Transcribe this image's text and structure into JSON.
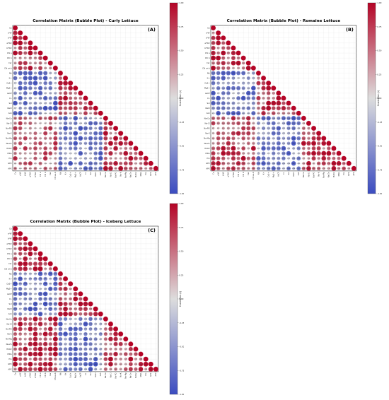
{
  "colors": {
    "negative": "#3b4cc0",
    "neutral": "#dddddd",
    "positive": "#b40426"
  },
  "chart_data": [
    {
      "type": "heatmap",
      "title": "Correlation Matrix (Bubble Plot) - Curly Lettuce",
      "panel_label": "(A)",
      "colorbar_label": "Correlation (r)",
      "colorbar_ticks": [
        "1.00",
        "0.75",
        "0.50",
        "0.25",
        "0.00",
        "-0.25",
        "-0.50",
        "-0.75",
        "-1.00"
      ],
      "vlim": [
        -1,
        1
      ],
      "variables": [
        "Ca",
        "a*W",
        "b*W",
        "a*W2",
        "b*W2",
        "Chl a",
        "Chl b",
        "Car",
        "Chl a+b",
        "Nit",
        "K+",
        "Ca2+",
        "Mg2+",
        "AsCP",
        "Cl-",
        "Sol",
        "NaCl",
        "Ash",
        "Na-Ca",
        "Na-Cl",
        "Na-PO",
        "Na-K",
        "Na-Mg",
        "Na-Zn",
        "H2O2",
        "MDA",
        "Pro",
        "GPX",
        "APX"
      ],
      "lower_triangle_only": true,
      "grid": true
    },
    {
      "type": "heatmap",
      "title": "Correlation Matrix (Bubble Plot) - Romaine Lettuce",
      "panel_label": "(B)",
      "colorbar_label": "Correlation (r)",
      "colorbar_ticks": [
        "1.00",
        "0.75",
        "0.50",
        "0.25",
        "0.00",
        "-0.25",
        "-0.50",
        "-0.75",
        "-1.00"
      ],
      "vlim": [
        -1,
        1
      ],
      "variables": [
        "Ca",
        "a*W",
        "b*W",
        "a*W2",
        "b*W2",
        "Chl a",
        "Chl b",
        "Car",
        "Chl a+b",
        "Nit",
        "K+",
        "Ca2+",
        "Mg2+",
        "AsCP",
        "Cl-",
        "Sol",
        "NaCl",
        "Ash",
        "Na-Ca",
        "Na-Cl",
        "Na-PO",
        "Na-K",
        "Na-Mg",
        "Na-Zn",
        "H2O2",
        "MDA",
        "Pro",
        "GPX",
        "APX"
      ],
      "lower_triangle_only": true,
      "grid": true
    },
    {
      "type": "heatmap",
      "title": "Correlation Matrix (Bubble Plot) - Iceberg Lettuce",
      "panel_label": "(C)",
      "colorbar_label": "Correlation (r)",
      "colorbar_ticks": [
        "1.00",
        "0.75",
        "0.50",
        "0.25",
        "0.00",
        "-0.25",
        "-0.50",
        "-0.75",
        "-1.00"
      ],
      "vlim": [
        -1,
        1
      ],
      "variables": [
        "Ca",
        "a*W",
        "b*W",
        "a*W2",
        "b*W2",
        "Chl a",
        "Chl b",
        "Car",
        "Chl a+b",
        "Nit",
        "K+",
        "Ca2+",
        "Mg2+",
        "AsCP",
        "Cl-",
        "Sol",
        "NaCl",
        "Ash",
        "Na-Ca",
        "Na-Cl",
        "Na-PO",
        "Na-K",
        "Na-Mg",
        "Na-Zn",
        "H2O2",
        "MDA",
        "Pro",
        "GPX",
        "APX"
      ],
      "lower_triangle_only": true,
      "grid": true
    }
  ]
}
